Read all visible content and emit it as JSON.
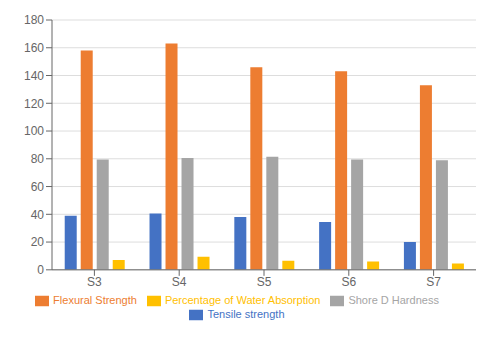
{
  "chart_data": {
    "type": "bar",
    "categories": [
      "S3",
      "S4",
      "S5",
      "S6",
      "S7"
    ],
    "series": [
      {
        "name": "Tensile strength",
        "color": "#4472C4",
        "values": [
          39,
          40.5,
          38,
          34.5,
          20
        ]
      },
      {
        "name": "Flexural Strength",
        "color": "#ED7D31",
        "values": [
          158,
          163,
          146,
          143,
          133
        ]
      },
      {
        "name": "Shore D Hardness",
        "color": "#A5A5A5",
        "values": [
          79.5,
          80.5,
          81.5,
          79.5,
          79
        ]
      },
      {
        "name": "Percentage of Water Absorption",
        "color": "#FFC000",
        "values": [
          7,
          9.5,
          6.5,
          6,
          4.5
        ]
      }
    ],
    "ylim": [
      0,
      180
    ],
    "yticks": [
      0,
      20,
      40,
      60,
      80,
      100,
      120,
      140,
      160,
      180
    ],
    "grid": true,
    "legend": "bottom"
  }
}
